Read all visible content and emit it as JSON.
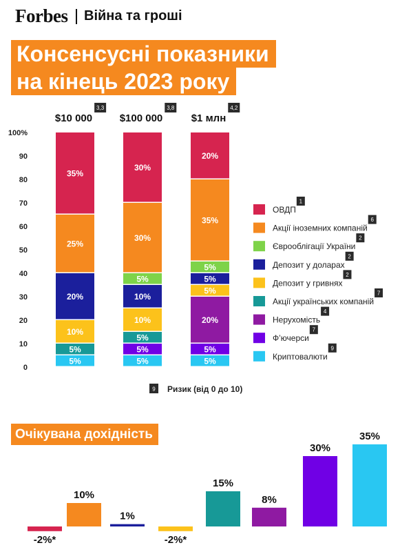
{
  "header": {
    "brand": "Forbes",
    "section": "Війна та гроші"
  },
  "title_lines": [
    "Консенсусні показники",
    "на кінець 2023 року"
  ],
  "colors": {
    "accent": "#f5891f",
    "ovdp": "#d6244f",
    "foreign_stocks": "#f5891f",
    "eurobonds": "#7ed349",
    "usd_deposit": "#1b1f9c",
    "uah_deposit": "#fcc21b",
    "ua_stocks": "#179997",
    "real_estate": "#8f1aa2",
    "futures": "#7000e5",
    "crypto": "#29c7f2",
    "badge": "#2b2b2b"
  },
  "chart_data": [
    {
      "type": "bar",
      "stacked": true,
      "categories": [
        "$10 000",
        "$100 000",
        "$1 млн"
      ],
      "category_risk": [
        "3,3",
        "3,8",
        "4,2"
      ],
      "y_ticks": [
        "0",
        "10",
        "20",
        "30",
        "40",
        "50",
        "60",
        "70",
        "80",
        "90",
        "100%"
      ],
      "ylim": [
        0,
        100
      ],
      "series": [
        {
          "name": "Криптовалюти",
          "risk": "9",
          "color": "#29c7f2",
          "values": [
            5,
            5,
            5
          ],
          "labels": [
            "5%",
            "5%",
            "5%"
          ]
        },
        {
          "name": "Ф’ючерси",
          "risk": "7",
          "color": "#7000e5",
          "values": [
            0,
            5,
            5
          ],
          "labels": [
            "",
            "5%",
            "5%"
          ]
        },
        {
          "name": "Нерухомість",
          "risk": "4",
          "color": "#8f1aa2",
          "values": [
            0,
            0,
            20
          ],
          "labels": [
            "",
            "",
            "20%"
          ]
        },
        {
          "name": "Акції українських компаній",
          "risk": "7",
          "color": "#179997",
          "values": [
            5,
            5,
            0
          ],
          "labels": [
            "5%",
            "5%",
            ""
          ]
        },
        {
          "name": "Депозит у гривнях",
          "risk": "2",
          "color": "#fcc21b",
          "values": [
            10,
            10,
            5
          ],
          "labels": [
            "10%",
            "10%",
            "5%"
          ]
        },
        {
          "name": "Депозит у доларах",
          "risk": "2",
          "color": "#1b1f9c",
          "values": [
            20,
            10,
            5
          ],
          "labels": [
            "20%",
            "10%",
            "5%"
          ]
        },
        {
          "name": "Єврооблігації України",
          "risk": "2",
          "color": "#7ed349",
          "values": [
            0,
            5,
            5
          ],
          "labels": [
            "",
            "5%",
            "5%"
          ]
        },
        {
          "name": "Акції іноземних компаній",
          "risk": "6",
          "color": "#f5891f",
          "values": [
            25,
            30,
            35
          ],
          "labels": [
            "25%",
            "30%",
            "35%"
          ]
        },
        {
          "name": "ОВДП",
          "risk": "1",
          "color": "#d6244f",
          "values": [
            35,
            30,
            20
          ],
          "labels": [
            "35%",
            "30%",
            "20%"
          ]
        }
      ],
      "legend_order": [
        "ОВДП",
        "Акції іноземних компаній",
        "Єврооблігації України",
        "Депозит у доларах",
        "Депозит у гривнях",
        "Акції українських компаній",
        "Нерухомість",
        "Ф’ючерси",
        "Криптовалюти"
      ],
      "legend_position": "right",
      "risk_note": {
        "badge": "9",
        "text": "Ризик (від 0 до 10)"
      }
    },
    {
      "type": "bar",
      "title": "Очікувана дохідність",
      "values": [
        -2,
        10,
        1,
        -2,
        15,
        8,
        30,
        35
      ],
      "labels": [
        "-2%*",
        "10%",
        "1%",
        "-2%*",
        "15%",
        "8%",
        "30%",
        "35%"
      ],
      "colors": [
        "#d6244f",
        "#f5891f",
        "#1b1f9c",
        "#fcc21b",
        "#179997",
        "#8f1aa2",
        "#7000e5",
        "#29c7f2"
      ]
    }
  ]
}
